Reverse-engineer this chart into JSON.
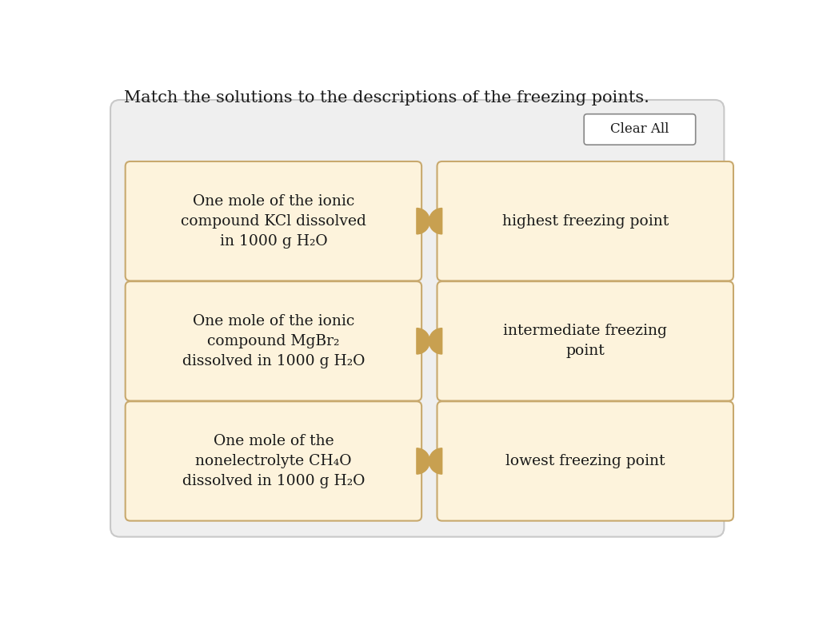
{
  "title": "Match the solutions to the descriptions of the freezing points.",
  "title_fontsize": 15,
  "title_color": "#1a1a1a",
  "background_color": "#efefef",
  "outer_box_color": "#c8c8c8",
  "card_bg_color": "#fdf3dc",
  "card_border_color": "#c8a96e",
  "connector_color": "#c8a050",
  "clear_all_bg": "#ffffff",
  "clear_all_border": "#888888",
  "clear_all_text": "Clear All",
  "left_cards": [
    "One mole of the ionic\ncompound KCl dissolved\nin 1000 g H₂O",
    "One mole of the ionic\ncompound MgBr₂\ndissolved in 1000 g H₂O",
    "One mole of the\nnonelectrolyte CH₄O\ndissolved in 1000 g H₂O"
  ],
  "right_cards": [
    "highest freezing point",
    "intermediate freezing\npoint",
    "lowest freezing point"
  ],
  "text_fontsize": 13.5,
  "text_color": "#1a1a1a"
}
